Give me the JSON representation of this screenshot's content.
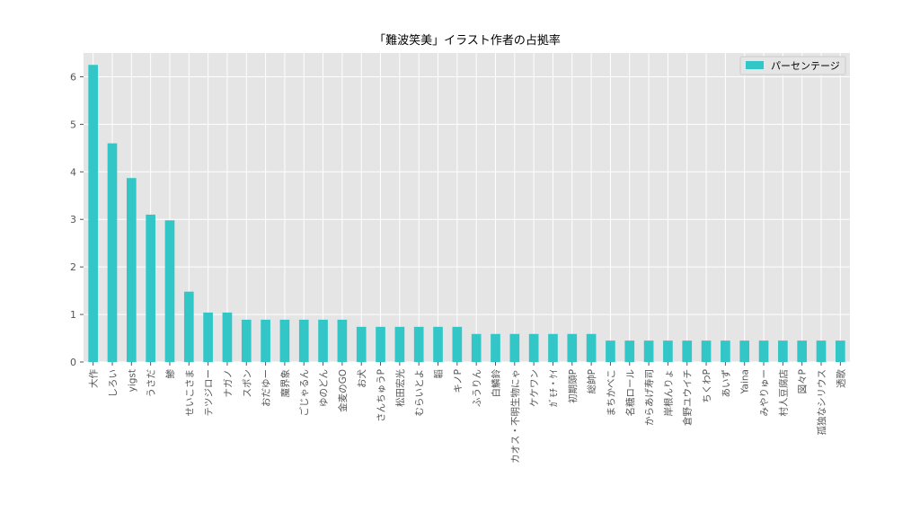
{
  "chart_data": {
    "type": "bar",
    "title": "「難波笑美」イラスト作者の占拠率",
    "xlabel": "",
    "ylabel": "",
    "ylim": [
      0,
      6.5
    ],
    "yticks": [
      0,
      1,
      2,
      3,
      4,
      5,
      6
    ],
    "grid": true,
    "legend_position": "top-right",
    "categories": [
      "大作",
      "しろい",
      "yigst",
      "うさだ",
      "鯵",
      "せいこさま",
      "テツジロー",
      "ナガノ",
      "スポン",
      "おだゆー",
      "魔界象",
      "ごじゃるん",
      "ゆのどん",
      "金麦のGO",
      "お犬",
      "さんちゅうP",
      "松田宏光",
      "むらいとよ",
      "韜",
      "キノP",
      "ふうりん",
      "白鱗鈴",
      "カオス・不明生物にゃ",
      "ケケワン",
      "ｶﾞﾓﾁ・ｹｲ",
      "初期頭P",
      "総帥P",
      "まちかべこ",
      "名糖ロール",
      "からあげ寿司",
      "岸根んりょ",
      "倉野ユウイチ",
      "ちくわP",
      "あいず",
      "Yaina",
      "みやりゅー",
      "村人豆腐店",
      "図々P",
      "孤独なシリウス",
      "透歌"
    ],
    "series": [
      {
        "name": "パーセンテージ",
        "color": "#33c6c6",
        "values": [
          6.25,
          4.6,
          3.87,
          3.1,
          2.98,
          1.48,
          1.04,
          1.04,
          0.89,
          0.89,
          0.89,
          0.89,
          0.89,
          0.89,
          0.74,
          0.74,
          0.74,
          0.74,
          0.74,
          0.74,
          0.59,
          0.59,
          0.59,
          0.59,
          0.59,
          0.59,
          0.59,
          0.45,
          0.45,
          0.45,
          0.45,
          0.45,
          0.45,
          0.45,
          0.45,
          0.45,
          0.45,
          0.45,
          0.45,
          0.45
        ]
      }
    ]
  }
}
